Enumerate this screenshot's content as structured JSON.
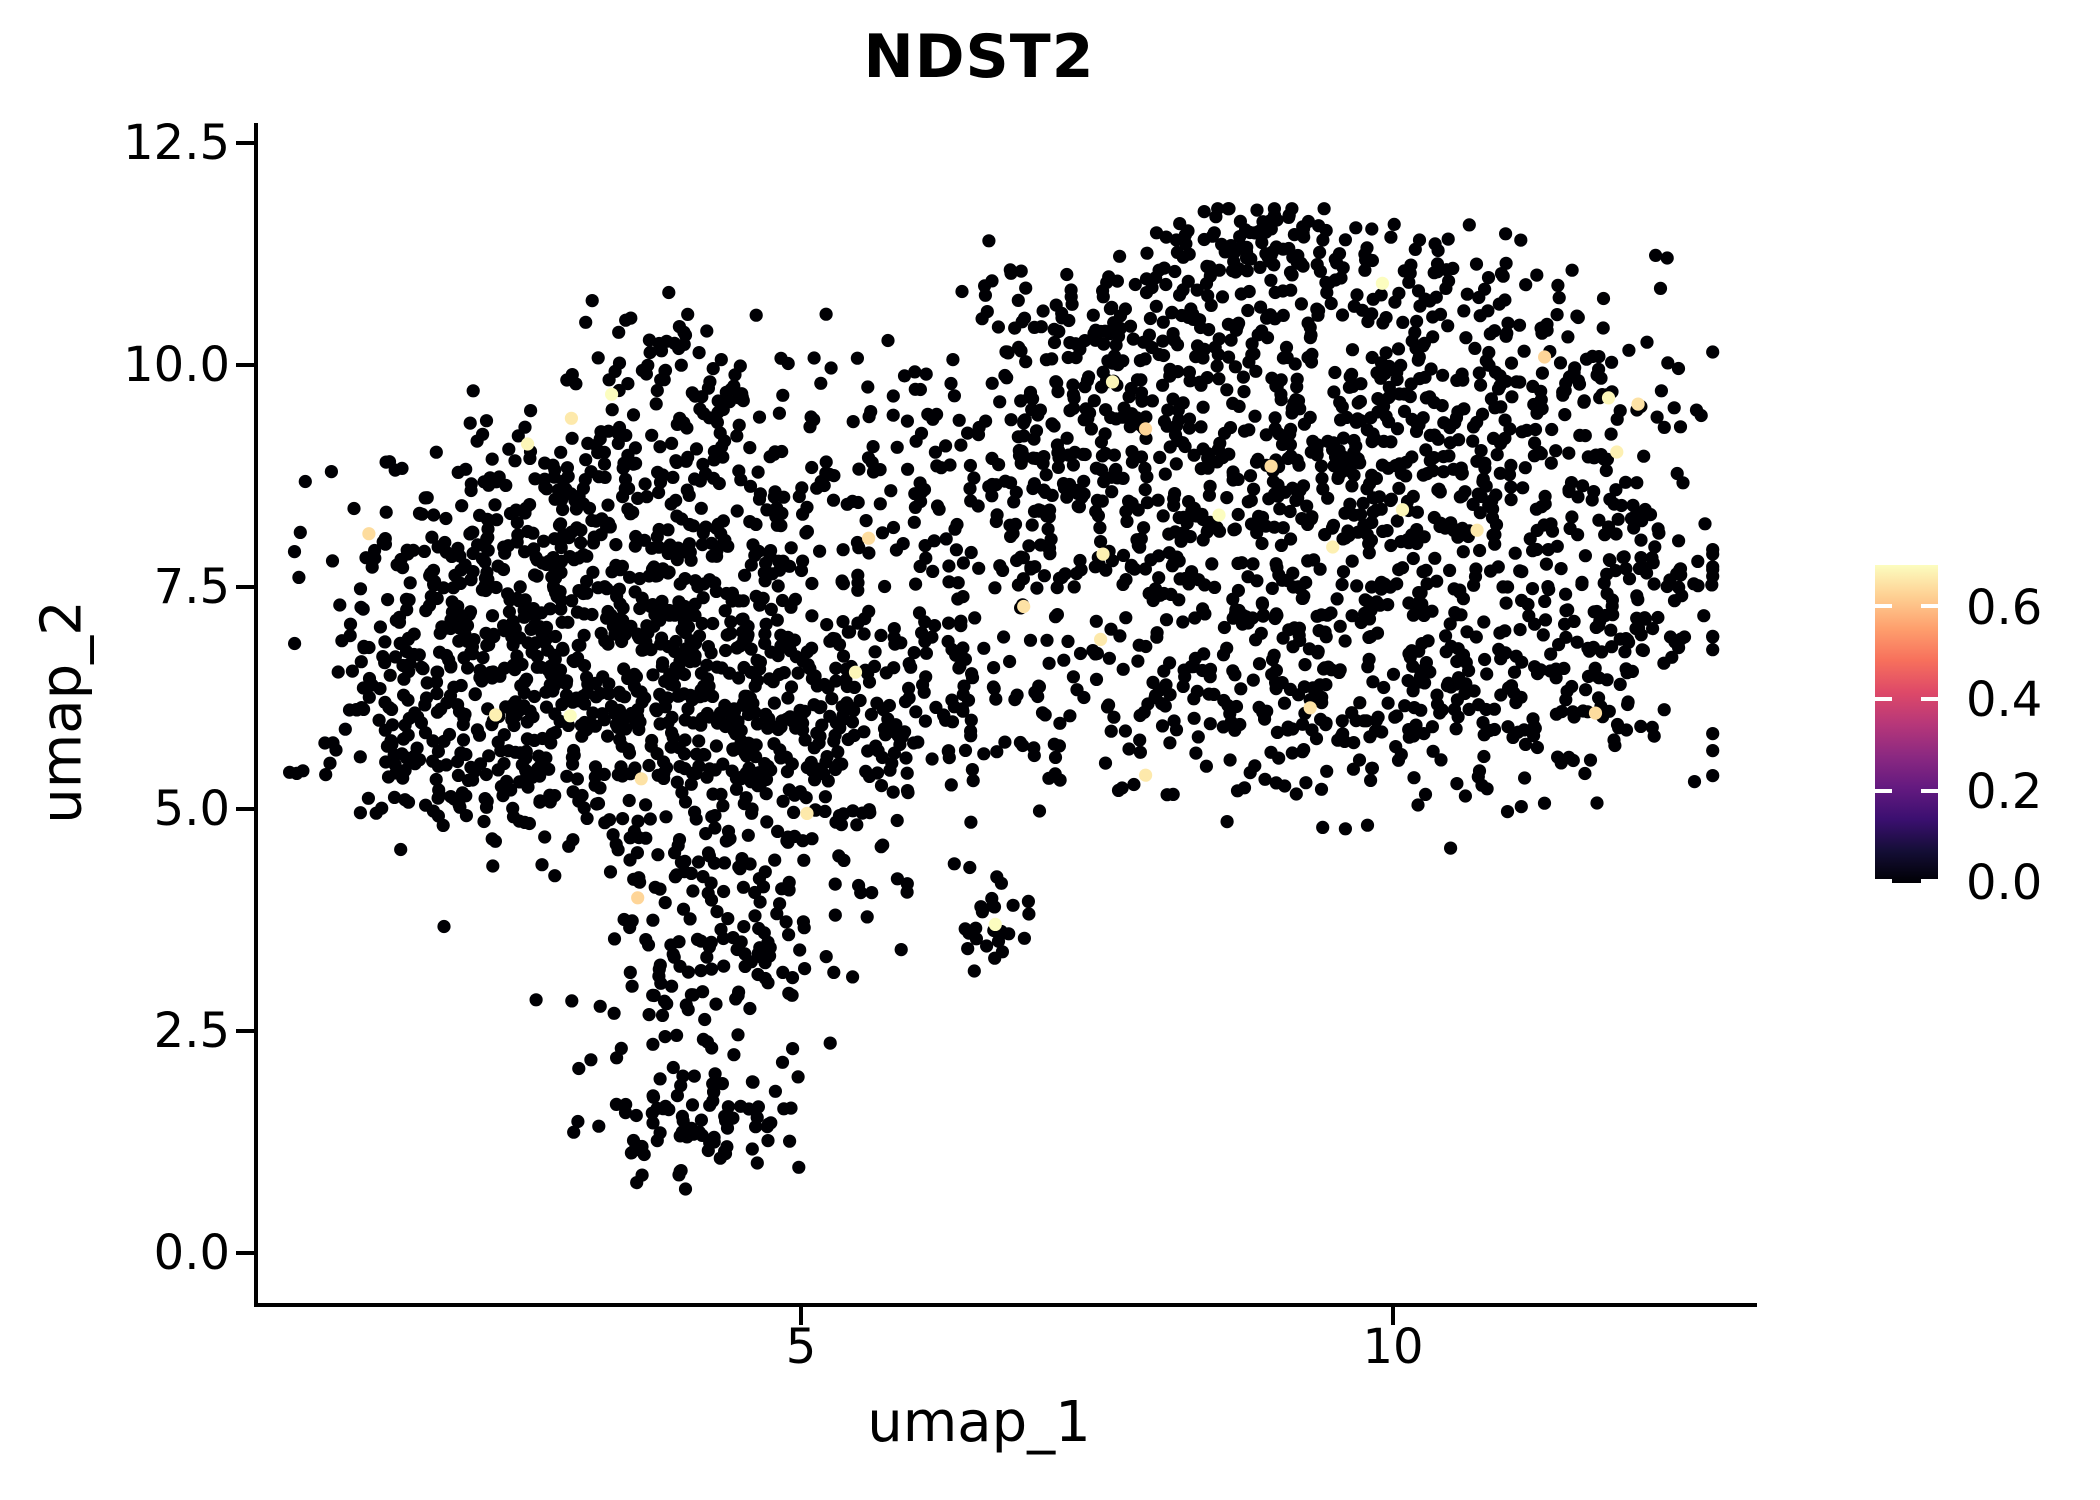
{
  "figure_title": "NDST2",
  "chart_data": {
    "type": "scatter",
    "title": "NDST2",
    "xlabel": "umap_1",
    "ylabel": "umap_2",
    "x_ticks": [
      {
        "value": 5,
        "label": "5"
      },
      {
        "value": 10,
        "label": "10"
      }
    ],
    "y_ticks": [
      {
        "value": 12.5,
        "label": "12.5"
      },
      {
        "value": 10.0,
        "label": "10.0"
      },
      {
        "value": 7.5,
        "label": "7.5"
      },
      {
        "value": 5.0,
        "label": "5.0"
      },
      {
        "value": 2.5,
        "label": "2.5"
      },
      {
        "value": 0.0,
        "label": "0.0"
      }
    ],
    "xlim": [
      0.413,
      13.057
    ],
    "ylim": [
      -0.586,
      12.703
    ],
    "grid": false,
    "legend_position": "right",
    "point_radius_px": 6.6,
    "base_value": 0,
    "colorbar": {
      "colormap": "magma",
      "vmin": 0.0,
      "vmax": 0.69,
      "ticks": [
        {
          "value": 0.6,
          "label": "0.6"
        },
        {
          "value": 0.4,
          "label": "0.4"
        },
        {
          "value": 0.2,
          "label": "0.2"
        },
        {
          "value": 0.0,
          "label": "0.0"
        }
      ],
      "gradient": [
        "#000004",
        "#140e36",
        "#3b0f70",
        "#641a80",
        "#8c2981",
        "#b73779",
        "#de4968",
        "#f7705c",
        "#fe9f6d",
        "#fecf92",
        "#fcfdbf"
      ]
    },
    "points_seed": 42,
    "clusters": [
      {
        "x": 2.55,
        "y": 6.3,
        "sx": 0.85,
        "sy": 0.8,
        "n": 210
      },
      {
        "x": 3.6,
        "y": 6.0,
        "sx": 0.9,
        "sy": 0.8,
        "n": 240
      },
      {
        "x": 3.3,
        "y": 7.3,
        "sx": 1.0,
        "sy": 0.7,
        "n": 160
      },
      {
        "x": 2.2,
        "y": 7.5,
        "sx": 0.65,
        "sy": 0.6,
        "n": 90
      },
      {
        "x": 3.9,
        "y": 8.8,
        "sx": 0.8,
        "sy": 0.6,
        "n": 120
      },
      {
        "x": 2.9,
        "y": 8.5,
        "sx": 0.7,
        "sy": 0.55,
        "n": 90
      },
      {
        "x": 4.6,
        "y": 7.0,
        "sx": 0.8,
        "sy": 0.9,
        "n": 130
      },
      {
        "x": 4.9,
        "y": 5.6,
        "sx": 0.7,
        "sy": 0.6,
        "n": 100
      },
      {
        "x": 4.3,
        "y": 4.4,
        "sx": 0.55,
        "sy": 0.55,
        "n": 70
      },
      {
        "x": 4.6,
        "y": 3.3,
        "sx": 0.45,
        "sy": 0.55,
        "n": 55
      },
      {
        "x": 4.0,
        "y": 2.8,
        "sx": 0.45,
        "sy": 0.6,
        "n": 50
      },
      {
        "x": 3.95,
        "y": 1.45,
        "sx": 0.35,
        "sy": 0.33,
        "n": 60
      },
      {
        "x": 4.45,
        "y": 1.7,
        "sx": 0.3,
        "sy": 0.35,
        "n": 25
      },
      {
        "x": 5.35,
        "y": 6.3,
        "sx": 0.6,
        "sy": 0.9,
        "n": 80
      },
      {
        "x": 4.2,
        "y": 9.8,
        "sx": 0.5,
        "sy": 0.4,
        "n": 40
      },
      {
        "x": 3.7,
        "y": 10.2,
        "sx": 0.3,
        "sy": 0.25,
        "n": 20
      },
      {
        "x": 1.6,
        "y": 6.5,
        "sx": 0.45,
        "sy": 0.55,
        "n": 50
      },
      {
        "x": 2.0,
        "y": 5.6,
        "sx": 0.5,
        "sy": 0.45,
        "n": 45
      },
      {
        "x": 6.3,
        "y": 7.6,
        "sx": 0.8,
        "sy": 1.0,
        "n": 60
      },
      {
        "x": 6.0,
        "y": 5.7,
        "sx": 0.6,
        "sy": 0.7,
        "n": 28
      },
      {
        "x": 5.9,
        "y": 9.2,
        "sx": 0.5,
        "sy": 0.5,
        "n": 22
      },
      {
        "x": 6.6,
        "y": 8.8,
        "sx": 0.8,
        "sy": 1.2,
        "n": 70
      },
      {
        "x": 6.3,
        "y": 6.6,
        "sx": 0.7,
        "sy": 0.9,
        "n": 50
      },
      {
        "x": 6.62,
        "y": 3.66,
        "sx": 0.15,
        "sy": 0.22,
        "n": 22
      },
      {
        "x": 8.3,
        "y": 9.3,
        "sx": 0.9,
        "sy": 0.9,
        "n": 200
      },
      {
        "x": 9.5,
        "y": 9.0,
        "sx": 0.9,
        "sy": 0.85,
        "n": 200
      },
      {
        "x": 8.9,
        "y": 11.35,
        "sx": 0.55,
        "sy": 0.26,
        "n": 90
      },
      {
        "x": 8.2,
        "y": 10.6,
        "sx": 0.7,
        "sy": 0.5,
        "n": 70
      },
      {
        "x": 10.6,
        "y": 9.6,
        "sx": 0.8,
        "sy": 0.7,
        "n": 120
      },
      {
        "x": 10.9,
        "y": 8.3,
        "sx": 0.8,
        "sy": 0.7,
        "n": 120
      },
      {
        "x": 9.0,
        "y": 7.3,
        "sx": 0.9,
        "sy": 0.8,
        "n": 160
      },
      {
        "x": 10.1,
        "y": 6.6,
        "sx": 0.8,
        "sy": 0.65,
        "n": 120
      },
      {
        "x": 11.8,
        "y": 7.3,
        "sx": 0.5,
        "sy": 0.8,
        "n": 90
      },
      {
        "x": 11.3,
        "y": 6.0,
        "sx": 0.6,
        "sy": 0.5,
        "n": 65
      },
      {
        "x": 8.0,
        "y": 6.0,
        "sx": 0.7,
        "sy": 0.6,
        "n": 75
      },
      {
        "x": 7.5,
        "y": 8.4,
        "sx": 0.6,
        "sy": 0.8,
        "n": 75
      },
      {
        "x": 9.7,
        "y": 5.6,
        "sx": 0.6,
        "sy": 0.4,
        "n": 50
      },
      {
        "x": 12.2,
        "y": 7.6,
        "sx": 0.28,
        "sy": 0.55,
        "n": 40
      },
      {
        "x": 7.3,
        "y": 10.3,
        "sx": 0.5,
        "sy": 0.5,
        "n": 50
      },
      {
        "x": 10.3,
        "y": 11.0,
        "sx": 0.6,
        "sy": 0.38,
        "n": 50
      },
      {
        "x": 11.5,
        "y": 9.9,
        "sx": 0.5,
        "sy": 0.4,
        "n": 45
      },
      {
        "x": 7.0,
        "y": 9.0,
        "sx": 0.45,
        "sy": 0.6,
        "n": 40
      }
    ],
    "highlighted_points": [
      {
        "x": 3.4,
        "y": 9.67,
        "value": 0.69
      },
      {
        "x": 3.06,
        "y": 9.4,
        "value": 0.66
      },
      {
        "x": 2.69,
        "y": 9.11,
        "value": 0.68
      },
      {
        "x": 1.35,
        "y": 8.1,
        "value": 0.64
      },
      {
        "x": 2.42,
        "y": 6.06,
        "value": 0.67
      },
      {
        "x": 3.65,
        "y": 5.34,
        "value": 0.65
      },
      {
        "x": 3.05,
        "y": 6.05,
        "value": 0.69
      },
      {
        "x": 3.62,
        "y": 4.0,
        "value": 0.63
      },
      {
        "x": 5.46,
        "y": 6.54,
        "value": 0.68
      },
      {
        "x": 5.05,
        "y": 4.95,
        "value": 0.66
      },
      {
        "x": 5.57,
        "y": 8.05,
        "value": 0.64
      },
      {
        "x": 6.64,
        "y": 3.7,
        "value": 0.69
      },
      {
        "x": 6.88,
        "y": 7.28,
        "value": 0.65
      },
      {
        "x": 7.55,
        "y": 7.87,
        "value": 0.67
      },
      {
        "x": 7.63,
        "y": 9.81,
        "value": 0.68
      },
      {
        "x": 7.91,
        "y": 9.28,
        "value": 0.63
      },
      {
        "x": 7.91,
        "y": 5.38,
        "value": 0.66
      },
      {
        "x": 8.53,
        "y": 8.31,
        "value": 0.69
      },
      {
        "x": 8.97,
        "y": 8.86,
        "value": 0.64
      },
      {
        "x": 9.49,
        "y": 7.95,
        "value": 0.67
      },
      {
        "x": 9.3,
        "y": 6.14,
        "value": 0.65
      },
      {
        "x": 10.08,
        "y": 8.37,
        "value": 0.68
      },
      {
        "x": 10.71,
        "y": 8.14,
        "value": 0.66
      },
      {
        "x": 9.91,
        "y": 10.92,
        "value": 0.69
      },
      {
        "x": 11.28,
        "y": 10.09,
        "value": 0.63
      },
      {
        "x": 11.82,
        "y": 9.63,
        "value": 0.68
      },
      {
        "x": 12.07,
        "y": 9.56,
        "value": 0.65
      },
      {
        "x": 11.89,
        "y": 9.02,
        "value": 0.67
      },
      {
        "x": 11.71,
        "y": 6.08,
        "value": 0.64
      },
      {
        "x": 7.53,
        "y": 6.91,
        "value": 0.66
      }
    ]
  }
}
